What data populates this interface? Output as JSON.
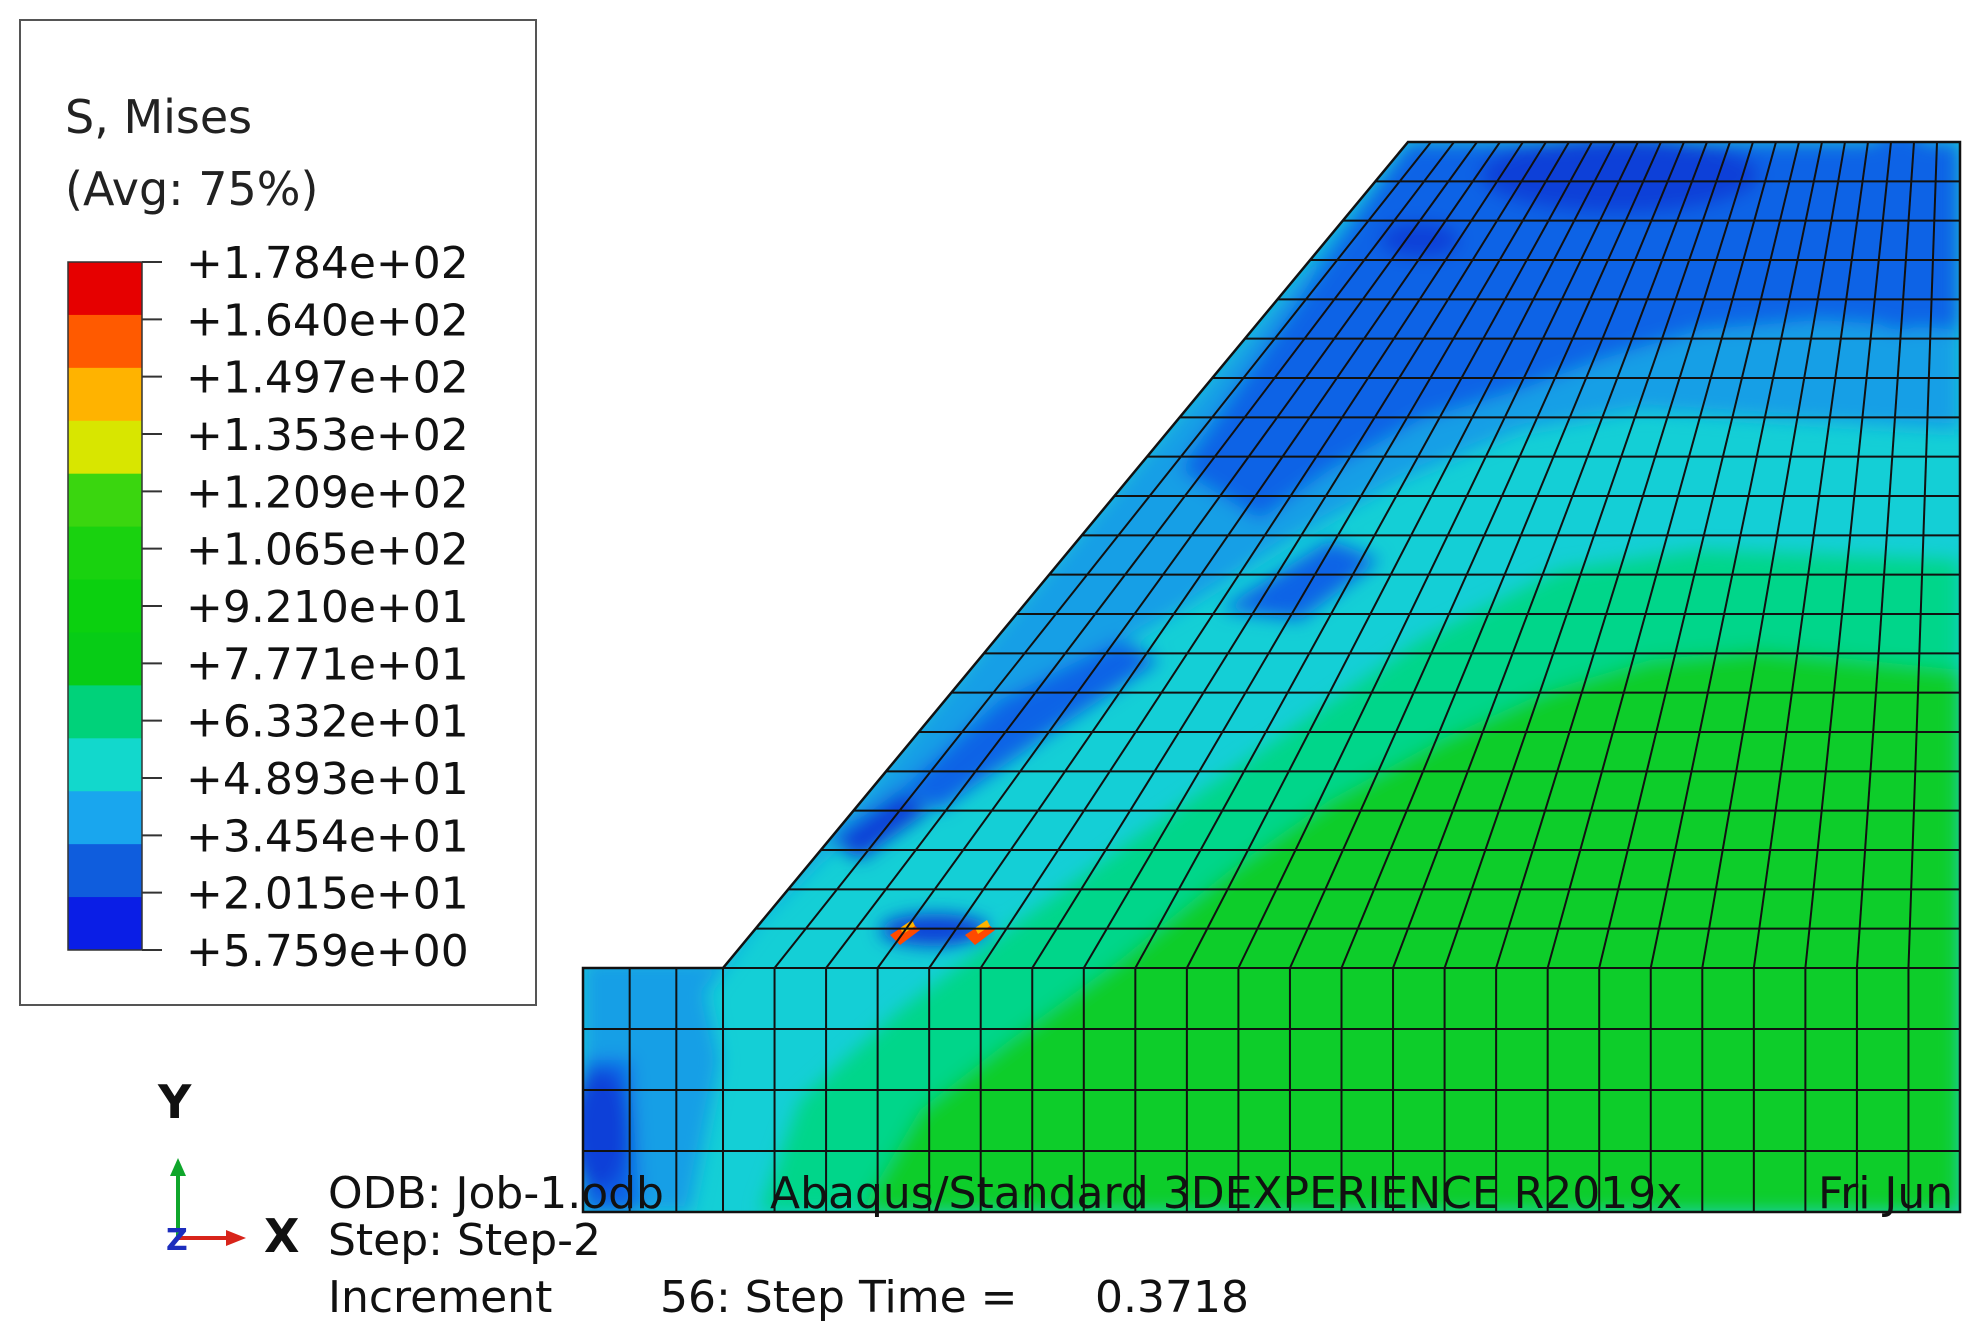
{
  "legend": {
    "title": "S, Mises",
    "subtitle": "(Avg: 75%)",
    "labels": [
      "+1.784e+02",
      "+1.640e+02",
      "+1.497e+02",
      "+1.353e+02",
      "+1.209e+02",
      "+1.065e+02",
      "+9.210e+01",
      "+7.771e+01",
      "+6.332e+01",
      "+4.893e+01",
      "+3.454e+01",
      "+2.015e+01",
      "+5.759e+00"
    ],
    "colors": [
      "#e60000",
      "#ff5a00",
      "#ffb300",
      "#d8e600",
      "#3ad60f",
      "#19d20f",
      "#0bd00f",
      "#07cc16",
      "#00d27a",
      "#12d8cc",
      "#19a6ee",
      "#0f5ddd",
      "#0a1ee6"
    ]
  },
  "triad": {
    "y_label": "Y",
    "x_label": "X",
    "z_label": "Z",
    "y_color": "#0fa62b",
    "x_color": "#d8241a",
    "z_color": "#1c2dbd"
  },
  "info": {
    "odb": "ODB: Job-1.odb",
    "version": "Abaqus/Standard 3DEXPERIENCE R2019x",
    "date": "Fri Jun",
    "step": "Step: Step-2",
    "increment_label": "Increment",
    "increment_value": "56: Step Time =",
    "step_time": "0.3718"
  },
  "contour_colors": {
    "dark_blue": "#0f3fd8",
    "blue": "#0f64e6",
    "light_blue": "#199fe6",
    "cyan": "#14cfd6",
    "teal": "#00d68a",
    "green": "#10cd2a",
    "hot_red": "#ff4a00",
    "hot_orange": "#ffb300",
    "mesh_line": "#111111"
  }
}
